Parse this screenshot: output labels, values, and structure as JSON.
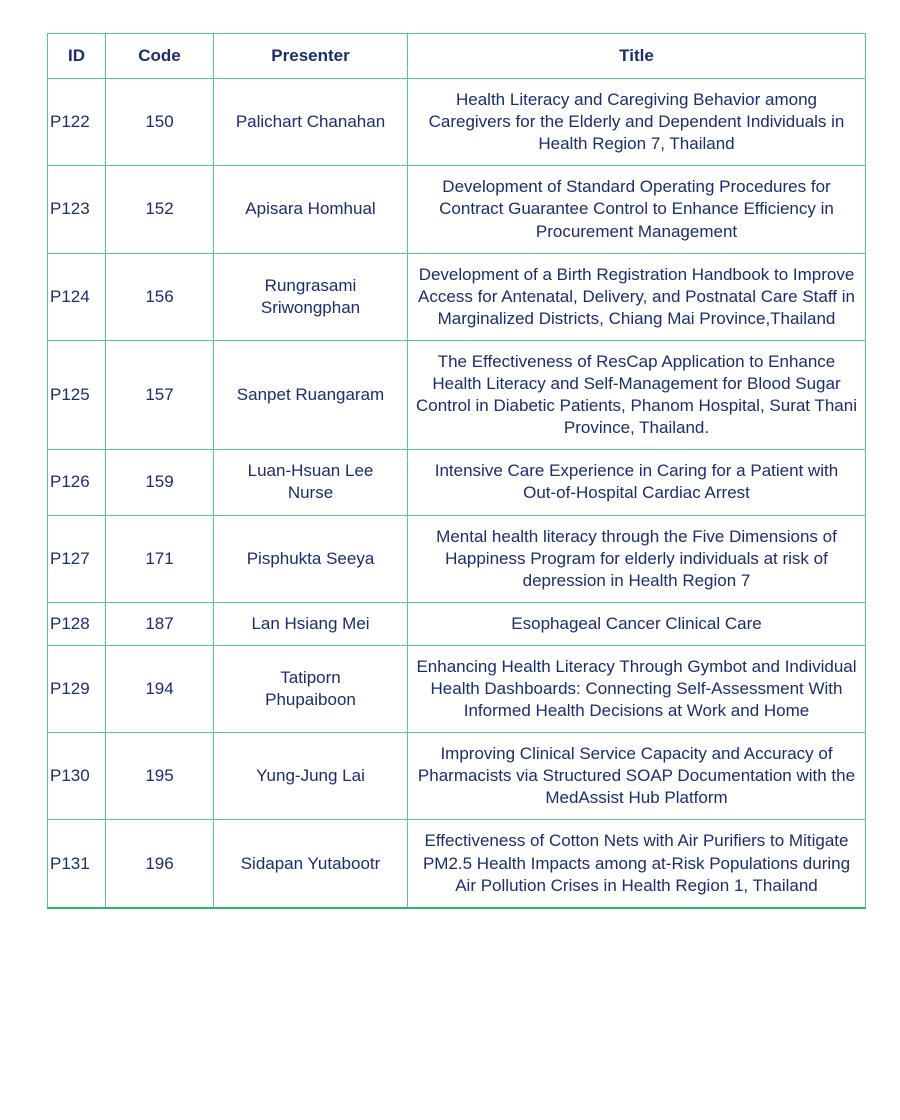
{
  "colors": {
    "border_green": "#57cb8e",
    "border_bottom_green": "#2eb566",
    "text_navy": "#1b2d6e",
    "background": "#ffffff"
  },
  "table": {
    "columns": [
      {
        "key": "id",
        "label": "ID"
      },
      {
        "key": "code",
        "label": "Code"
      },
      {
        "key": "presenter",
        "label": "Presenter"
      },
      {
        "key": "title",
        "label": "Title"
      }
    ],
    "rows": [
      {
        "id": "P122",
        "code": "150",
        "presenter": "Palichart Chanahan",
        "title": "Health Literacy and Caregiving Behavior among Caregivers for the Elderly and Dependent Individuals in Health Region 7, Thailand"
      },
      {
        "id": "P123",
        "code": "152",
        "presenter": "Apisara Homhual",
        "title": "Development of Standard Operating Procedures for Contract Guarantee Control to Enhance Efficiency in Procurement Management"
      },
      {
        "id": "P124",
        "code": "156",
        "presenter": "Rungrasami\nSriwongphan",
        "title": "Development of a Birth Registration Handbook to Improve Access for Antenatal, Delivery, and Postnatal Care Staff in Marginalized Districts, Chiang Mai Province,Thailand"
      },
      {
        "id": "P125",
        "code": "157",
        "presenter": "Sanpet Ruangaram",
        "title": "The Effectiveness of ResCap Application  to Enhance Health Literacy and Self-Management for Blood Sugar Control in Diabetic Patients, Phanom Hospital, Surat Thani Province, Thailand."
      },
      {
        "id": "P126",
        "code": "159",
        "presenter": "Luan-Hsuan Lee\nNurse",
        "title": "Intensive Care Experience in Caring for a Patient with Out-of-Hospital Cardiac Arrest"
      },
      {
        "id": "P127",
        "code": "171",
        "presenter": "Pisphukta Seeya",
        "title": "Mental health literacy through the Five Dimensions of Happiness Program for elderly individuals at risk of depression in Health Region 7"
      },
      {
        "id": "P128",
        "code": "187",
        "presenter": "Lan Hsiang Mei",
        "title": "Esophageal Cancer Clinical Care"
      },
      {
        "id": "P129",
        "code": "194",
        "presenter": "Tatiporn\nPhupaiboon",
        "title": "Enhancing Health Literacy Through Gymbot and Individual Health Dashboards: Connecting Self-Assessment With Informed Health Decisions at Work and Home"
      },
      {
        "id": "P130",
        "code": "195",
        "presenter": "Yung-Jung Lai",
        "title": "Improving Clinical Service Capacity and Accuracy of Pharmacists via Structured SOAP Documentation with the MedAssist Hub Platform"
      },
      {
        "id": "P131",
        "code": "196",
        "presenter": "Sidapan Yutabootr",
        "title": "Effectiveness of Cotton Nets with Air Purifiers to Mitigate PM2.5 Health Impacts among at-Risk Populations during  Air Pollution Crises in Health Region 1, Thailand"
      }
    ]
  }
}
